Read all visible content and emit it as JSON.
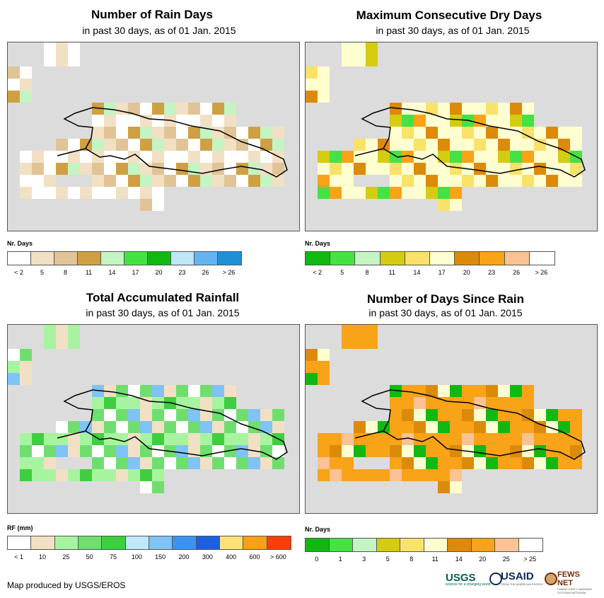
{
  "panels": [
    {
      "title": "Number of Rain Days",
      "subtitle": "in past 30 days, as of 01 Jan. 2015",
      "legend_title": "Nr. Days",
      "legend_colors": [
        "#ffffff",
        "#f2e0c4",
        "#e0c497",
        "#cfa043",
        "#c4f3c4",
        "#44e244",
        "#12b812",
        "#bde6f6",
        "#63b4f0",
        "#1f8fd6"
      ],
      "legend_labels": [
        "< 2",
        "5",
        "8",
        "11",
        "14",
        "17",
        "20",
        "23",
        "26",
        "> 26"
      ],
      "cell_classes": [
        "white",
        "tan",
        "tan",
        "med",
        "light-green",
        "bright-green",
        "green",
        "light-blue",
        "blue",
        "deep-blue"
      ]
    },
    {
      "title": "Maximum Consecutive Dry Days",
      "subtitle": "in past 30 days, as of 01 Jan. 2015",
      "legend_title": "Nr. Days",
      "legend_colors": [
        "#12b812",
        "#44e244",
        "#c4f3c4",
        "#d4cc11",
        "#f8e26a",
        "#fffed0",
        "#dc8a0a",
        "#f8a318",
        "#fbc294",
        "#ffffff"
      ],
      "legend_labels": [
        "< 2",
        "5",
        "8",
        "11",
        "14",
        "17",
        "20",
        "23",
        "26",
        "> 26"
      ]
    },
    {
      "title": "Total Accumulated Rainfall",
      "subtitle": "in past 30 days, as of 01 Jan. 2015",
      "legend_title": "RF (mm)",
      "legend_colors": [
        "#ffffff",
        "#f2e0c4",
        "#a7f4a0",
        "#6fde6f",
        "#3fce3f",
        "#bde9fa",
        "#7fc3f7",
        "#3e92ef",
        "#1e5fe0",
        "#fde27a",
        "#f8a018",
        "#f83d0e"
      ],
      "legend_labels": [
        "< 1",
        "10",
        "25",
        "50",
        "75",
        "100",
        "150",
        "200",
        "300",
        "400",
        "600",
        "> 600"
      ]
    },
    {
      "title": "Number of Days Since Rain",
      "subtitle": "in past 30 days, as of 01 Jan. 2015",
      "legend_title": "Nr. Days",
      "legend_colors": [
        "#12b812",
        "#44e244",
        "#c4f3c4",
        "#d4cc11",
        "#f8e26a",
        "#fffed0",
        "#dc8a0a",
        "#f8a318",
        "#fbc294",
        "#ffffff"
      ],
      "legend_labels": [
        "0",
        "1",
        "3",
        "5",
        "8",
        "11",
        "14",
        "20",
        "25",
        "> 25"
      ]
    }
  ],
  "credit": "Map produced by USGS/EROS",
  "logos": {
    "usgs": "USGS",
    "usgs_tagline": "science for a changing world",
    "usaid": "USAID",
    "usaid_tagline": "FROM THE AMERICAN PEOPLE",
    "fews": "FEWS NET",
    "fews_tagline": "FAMINE EARLY WARNING SYSTEMS NETWORK"
  }
}
